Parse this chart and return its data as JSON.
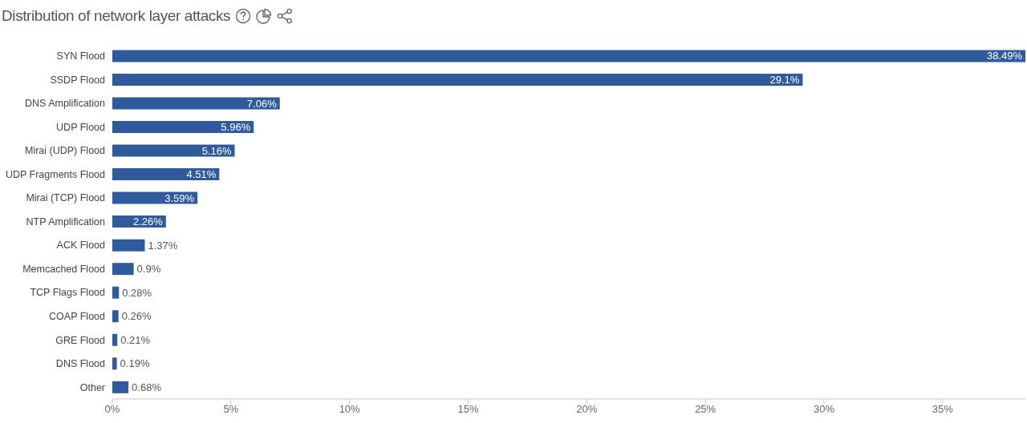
{
  "chart_data": {
    "type": "bar",
    "orientation": "horizontal",
    "title": "Distribution of network layer attacks",
    "categories": [
      "SYN Flood",
      "SSDP Flood",
      "DNS Amplification",
      "UDP Flood",
      "Mirai (UDP) Flood",
      "UDP Fragments Flood",
      "Mirai (TCP) Flood",
      "NTP Amplification",
      "ACK Flood",
      "Memcached Flood",
      "TCP Flags Flood",
      "COAP Flood",
      "GRE Flood",
      "DNS Flood",
      "Other"
    ],
    "values": [
      38.49,
      29.1,
      7.06,
      5.96,
      5.16,
      4.51,
      3.59,
      2.26,
      1.37,
      0.9,
      0.28,
      0.26,
      0.21,
      0.19,
      0.68
    ],
    "value_labels": [
      "38.49%",
      "29.1%",
      "7.06%",
      "5.96%",
      "5.16%",
      "4.51%",
      "3.59%",
      "2.26%",
      "1.37%",
      "0.9%",
      "0.28%",
      "0.26%",
      "0.21%",
      "0.19%",
      "0.68%"
    ],
    "color": "#2f5b9c",
    "xlim": [
      0,
      38.49
    ],
    "xticks": [
      {
        "value": 0,
        "label": "0%"
      },
      {
        "value": 5,
        "label": "5%"
      },
      {
        "value": 10,
        "label": "10%"
      },
      {
        "value": 15,
        "label": "15%"
      },
      {
        "value": 20,
        "label": "20%"
      },
      {
        "value": 25,
        "label": "25%"
      },
      {
        "value": 30,
        "label": "30%"
      },
      {
        "value": 35,
        "label": "35%"
      }
    ]
  }
}
